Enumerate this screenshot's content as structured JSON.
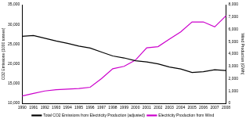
{
  "chart_data": {
    "type": "line",
    "categories": [
      "1990",
      "1991",
      "1992",
      "1993",
      "1994",
      "1995",
      "1996",
      "1997",
      "1998",
      "1999",
      "2000",
      "2001",
      "2002",
      "2003",
      "2004",
      "2005",
      "2006",
      "2007",
      "2008"
    ],
    "series": [
      {
        "name": "Total CO2 Emissions from Electricity Production (adjusted)",
        "color": "#000000",
        "axis": "y",
        "values": [
          27000,
          27200,
          26500,
          25800,
          25200,
          24500,
          24000,
          23000,
          22000,
          21500,
          20800,
          20500,
          20000,
          19200,
          18700,
          17800,
          18000,
          18500,
          18300
        ]
      },
      {
        "name": "Electricity Production from Wind",
        "color": "#cc00cc",
        "axis": "y2",
        "values": [
          600,
          800,
          1000,
          1100,
          1150,
          1200,
          1300,
          2000,
          2800,
          3000,
          3500,
          4500,
          4600,
          5200,
          5800,
          6600,
          6600,
          6200,
          7100
        ]
      }
    ],
    "y_label": "CO2 Emissions (1000 tonnes)",
    "y2_label": "Wind Production (GWh)",
    "ylim": [
      10000,
      35000
    ],
    "yticks": [
      {
        "value": 10000,
        "label": "10,000"
      },
      {
        "value": 15000,
        "label": "15,000"
      },
      {
        "value": 20000,
        "label": "20,000"
      },
      {
        "value": 25000,
        "label": "25,000"
      },
      {
        "value": 30000,
        "label": "30,000"
      },
      {
        "value": 35000,
        "label": "35,000"
      }
    ],
    "y2lim": [
      0,
      8000
    ],
    "y2ticks": [
      0,
      {
        "value": 1000,
        "label": "1,000"
      },
      {
        "value": 2000,
        "label": "2,000"
      },
      {
        "value": 3000,
        "label": "3,000"
      },
      {
        "value": 4000,
        "label": "4,000"
      },
      {
        "value": 5000,
        "label": "5,000"
      },
      {
        "value": 6000,
        "label": "6,000"
      },
      {
        "value": 7000,
        "label": "7,000"
      },
      {
        "value": 8000,
        "label": "8,000"
      }
    ],
    "grid": false,
    "legend": "bottom"
  }
}
